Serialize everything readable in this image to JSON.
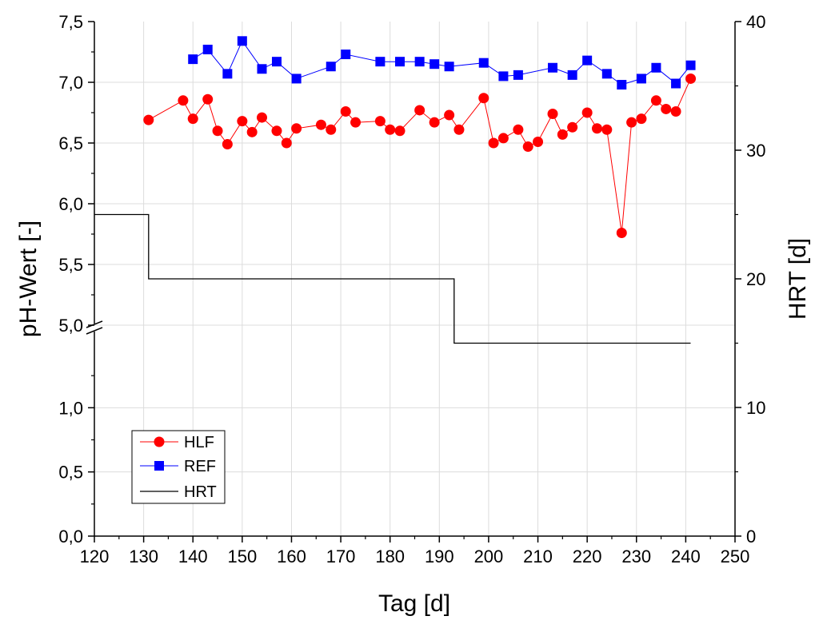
{
  "chart_data": {
    "type": "line",
    "xlabel": "Tag [d]",
    "ylabel_left": "pH-Wert [-]",
    "ylabel_right": "HRT [d]",
    "x_range": [
      120,
      250
    ],
    "x_ticks": [
      120,
      130,
      140,
      150,
      160,
      170,
      180,
      190,
      200,
      210,
      220,
      230,
      240,
      250
    ],
    "y_left_axis_break": true,
    "y_left_lower_range": [
      0,
      1.5
    ],
    "y_left_lower_ticks": [
      "0,0",
      "0,5",
      "1,0"
    ],
    "y_left_upper_range": [
      5.0,
      7.5
    ],
    "y_left_upper_ticks": [
      "5,0",
      "5,5",
      "6,0",
      "6,5",
      "7,0",
      "7,5"
    ],
    "y_right_range": [
      0,
      40
    ],
    "y_right_ticks": [
      "0",
      "10",
      "20",
      "30",
      "40"
    ],
    "grid": true,
    "legend_position": "bottom-left",
    "legend": [
      "HLF",
      "REF",
      "HRT"
    ],
    "series": [
      {
        "name": "HLF",
        "axis": "left",
        "color": "#ff0000",
        "marker": "circle",
        "x": [
          131,
          138,
          140,
          143,
          145,
          147,
          150,
          152,
          154,
          157,
          159,
          161,
          166,
          168,
          171,
          173,
          178,
          180,
          182,
          186,
          189,
          192,
          194,
          199,
          201,
          203,
          206,
          208,
          210,
          213,
          215,
          217,
          220,
          222,
          224,
          227,
          229,
          231,
          234,
          236,
          238,
          241
        ],
        "y": [
          6.69,
          6.85,
          6.7,
          6.86,
          6.6,
          6.49,
          6.68,
          6.59,
          6.71,
          6.6,
          6.5,
          6.62,
          6.65,
          6.61,
          6.76,
          6.67,
          6.68,
          6.61,
          6.6,
          6.77,
          6.67,
          6.73,
          6.61,
          6.87,
          6.5,
          6.54,
          6.61,
          6.47,
          6.51,
          6.74,
          6.57,
          6.63,
          6.75,
          6.62,
          6.61,
          5.76,
          6.67,
          6.7,
          6.85,
          6.78,
          6.76,
          7.03
        ]
      },
      {
        "name": "REF",
        "axis": "left",
        "color": "#0000ff",
        "marker": "square",
        "x": [
          140,
          143,
          147,
          150,
          154,
          157,
          161,
          168,
          171,
          178,
          182,
          186,
          189,
          192,
          199,
          203,
          206,
          213,
          217,
          220,
          224,
          227,
          231,
          234,
          238,
          241
        ],
        "y": [
          7.19,
          7.27,
          7.07,
          7.34,
          7.11,
          7.17,
          7.03,
          7.13,
          7.23,
          7.17,
          7.17,
          7.17,
          7.15,
          7.13,
          7.16,
          7.05,
          7.06,
          7.12,
          7.06,
          7.18,
          7.07,
          6.98,
          7.03,
          7.12,
          6.99,
          7.14
        ]
      },
      {
        "name": "HRT",
        "axis": "right",
        "color": "#000000",
        "marker": "none",
        "step": true,
        "x": [
          120,
          131,
          193,
          241
        ],
        "y": [
          25,
          20,
          15,
          15
        ]
      }
    ]
  }
}
